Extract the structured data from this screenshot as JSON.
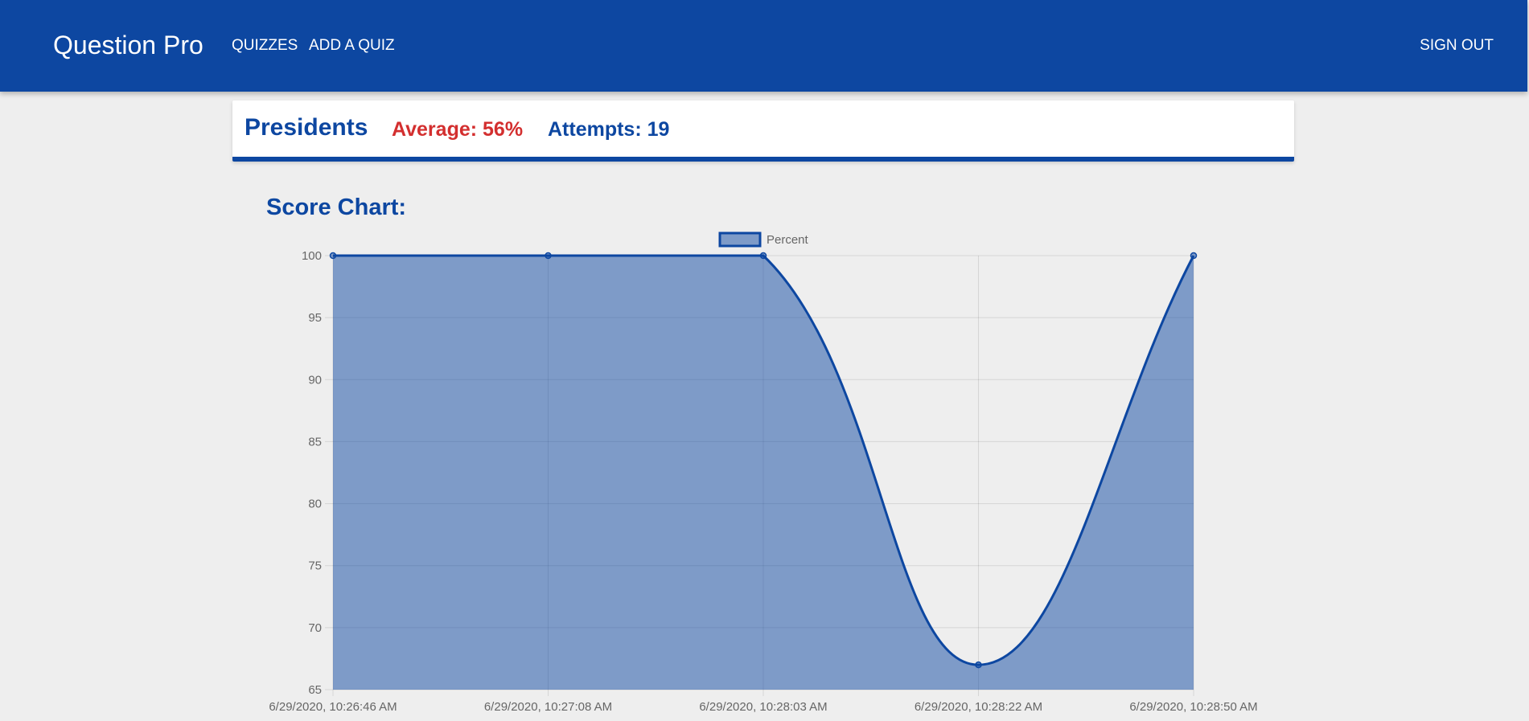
{
  "header": {
    "brand": "Question Pro",
    "nav": {
      "quizzes": "QUIZZES",
      "add_quiz": "ADD A QUIZ",
      "sign_out": "SIGN OUT"
    }
  },
  "quiz": {
    "title": "Presidents",
    "average": "Average: 56%",
    "attempts": "Attempts: 19"
  },
  "chart_heading": "Score Chart:",
  "colors": {
    "primary": "#0d47a1",
    "accent_red": "#d32f2f",
    "area_fill": "rgba(13,71,161,0.5)"
  },
  "chart_data": {
    "type": "area",
    "x": [
      "6/29/2020, 10:26:46 AM",
      "6/29/2020, 10:27:08 AM",
      "6/29/2020, 10:28:03 AM",
      "6/29/2020, 10:28:22 AM",
      "6/29/2020, 10:28:50 AM"
    ],
    "series": [
      {
        "name": "Percent",
        "values": [
          100,
          100,
          100,
          67,
          100
        ]
      }
    ],
    "ylim": [
      65,
      100
    ],
    "yticks": [
      65,
      70,
      75,
      80,
      85,
      90,
      95,
      100
    ],
    "grid": true,
    "legend": "top-center"
  }
}
